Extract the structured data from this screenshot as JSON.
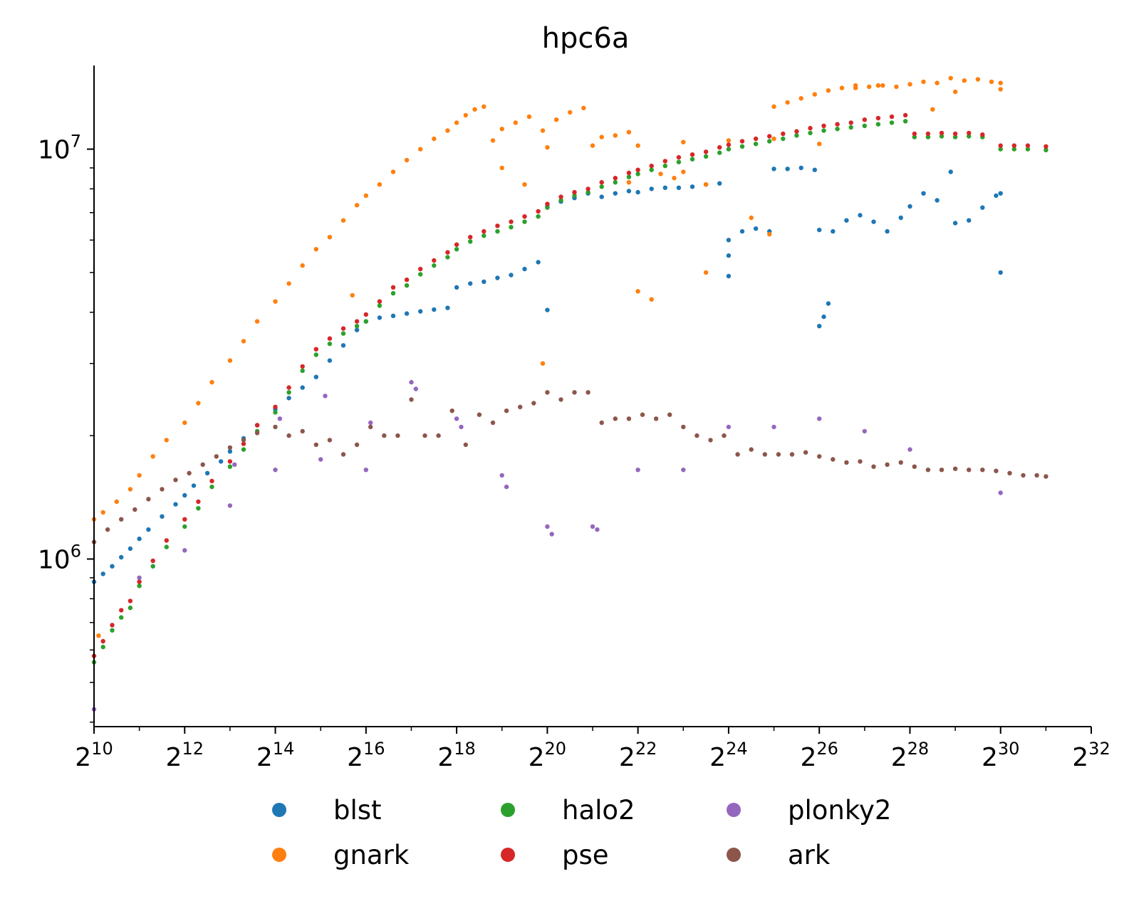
{
  "chart_data": {
    "type": "scatter",
    "title": "hpc6a",
    "xlabel": "",
    "ylabel": "",
    "x_scale": "log2",
    "y_scale": "log10",
    "x_ticks": [
      {
        "base": "2",
        "exp": "10",
        "value": 1024
      },
      {
        "base": "2",
        "exp": "12",
        "value": 4096
      },
      {
        "base": "2",
        "exp": "14",
        "value": 16384
      },
      {
        "base": "2",
        "exp": "16",
        "value": 65536
      },
      {
        "base": "2",
        "exp": "18",
        "value": 262144
      },
      {
        "base": "2",
        "exp": "20",
        "value": 1048576
      },
      {
        "base": "2",
        "exp": "22",
        "value": 4194304
      },
      {
        "base": "2",
        "exp": "24",
        "value": 16777216
      },
      {
        "base": "2",
        "exp": "26",
        "value": 67108864
      },
      {
        "base": "2",
        "exp": "28",
        "value": 268435456
      },
      {
        "base": "2",
        "exp": "30",
        "value": 1073741824
      },
      {
        "base": "2",
        "exp": "32",
        "value": 4294967296
      }
    ],
    "y_ticks": [
      {
        "base": "10",
        "exp": "6",
        "value": 1000000
      },
      {
        "base": "10",
        "exp": "7",
        "value": 10000000
      }
    ],
    "xlim": [
      1024,
      4294967296
    ],
    "ylim": [
      390000,
      16000000
    ],
    "grid": false,
    "legend": "bottom-outside",
    "series": [
      {
        "name": "blst",
        "color": "#1f77b4",
        "x_log2": [
          10,
          10.2,
          10.4,
          10.6,
          10.8,
          11,
          11.2,
          11.5,
          11.8,
          12,
          12.2,
          12.5,
          12.8,
          13,
          13.3,
          13.6,
          14,
          14.3,
          14.6,
          14.9,
          15.2,
          15.5,
          15.8,
          16,
          16.3,
          16.6,
          16.9,
          17.2,
          17.5,
          17.8,
          18,
          18.3,
          18.6,
          18.9,
          19.2,
          19.5,
          19.8,
          20,
          20.3,
          20.6,
          20.9,
          21.2,
          21.5,
          21.8,
          22,
          22.3,
          22.6,
          22.9,
          23.2,
          23.5,
          23.8,
          24,
          24.3,
          24.6,
          24.9,
          25,
          25.3,
          25.6,
          25.9,
          26,
          26.3,
          26.6,
          26.9,
          27.2,
          27.5,
          27.8,
          28,
          28.3,
          28.6,
          28.9,
          29,
          29.3,
          29.6,
          29.9,
          30,
          30,
          26,
          26.1,
          26.2,
          24,
          24,
          20
        ],
        "y": [
          880000,
          920000,
          960000,
          1010000,
          1060000,
          1120000,
          1180000,
          1270000,
          1360000,
          1430000,
          1510000,
          1620000,
          1730000,
          1830000,
          1970000,
          2120000,
          2320000,
          2470000,
          2620000,
          2780000,
          3050000,
          3320000,
          3620000,
          3800000,
          3880000,
          3920000,
          3970000,
          4020000,
          4060000,
          4100000,
          4600000,
          4700000,
          4750000,
          4850000,
          4930000,
          5100000,
          5300000,
          7250000,
          7450000,
          7600000,
          7800000,
          7650000,
          7800000,
          7900000,
          7850000,
          8000000,
          8050000,
          8050000,
          8100000,
          8200000,
          8250000,
          6000000,
          6300000,
          6400000,
          6300000,
          8950000,
          8950000,
          9000000,
          8900000,
          6350000,
          6300000,
          6700000,
          6900000,
          6650000,
          6300000,
          6800000,
          7250000,
          7800000,
          7500000,
          8800000,
          6600000,
          6700000,
          7200000,
          7700000,
          7800000,
          5000000,
          3700000,
          3900000,
          4200000,
          5500000,
          4900000,
          4050000
        ]
      },
      {
        "name": "gnark",
        "color": "#ff7f0e",
        "x_log2": [
          10,
          10.2,
          10.5,
          10.8,
          11,
          11.3,
          11.6,
          12,
          12.3,
          12.6,
          13,
          13.3,
          13.6,
          14,
          14.3,
          14.6,
          14.9,
          15.2,
          15.5,
          15.8,
          16,
          16.3,
          16.6,
          16.9,
          17.2,
          17.5,
          17.8,
          18,
          18.2,
          18.4,
          18.6,
          19,
          19.3,
          19.6,
          19.9,
          20.2,
          20.5,
          20.8,
          21.2,
          21.5,
          21.8,
          25,
          25.3,
          25.6,
          25.9,
          26.2,
          26.5,
          26.8,
          27.1,
          27.4,
          27.7,
          28,
          28.3,
          28.6,
          28.9,
          29.2,
          29.5,
          29.8,
          30,
          20,
          21,
          22,
          23,
          24,
          25,
          23.5,
          21.8,
          22.8,
          23,
          19,
          18.8,
          19.5,
          22,
          22.3,
          23.5,
          24.5,
          24.9,
          15.7,
          19.9,
          26,
          28.5,
          29,
          30,
          22.5,
          26.8,
          27.3,
          10.1
        ],
        "y": [
          1250000,
          1300000,
          1380000,
          1480000,
          1600000,
          1780000,
          1950000,
          2150000,
          2400000,
          2700000,
          3050000,
          3400000,
          3800000,
          4250000,
          4700000,
          5200000,
          5700000,
          6100000,
          6700000,
          7300000,
          7700000,
          8200000,
          8800000,
          9400000,
          10000000,
          10600000,
          11100000,
          11600000,
          12100000,
          12500000,
          12700000,
          11200000,
          11600000,
          12000000,
          11100000,
          11800000,
          12300000,
          12600000,
          10700000,
          10800000,
          11000000,
          12700000,
          13000000,
          13300000,
          13600000,
          13900000,
          14100000,
          14300000,
          14200000,
          14300000,
          14200000,
          14400000,
          14600000,
          14500000,
          14900000,
          14700000,
          14800000,
          14600000,
          14500000,
          10100000,
          10200000,
          10200000,
          10400000,
          10500000,
          10600000,
          8200000,
          8300000,
          8500000,
          8800000,
          9000000,
          10500000,
          8200000,
          4500000,
          4300000,
          5000000,
          6800000,
          6200000,
          4400000,
          3000000,
          10300000,
          12500000,
          13800000,
          14000000,
          8700000,
          14100000,
          14300000,
          650000
        ]
      },
      {
        "name": "halo2",
        "color": "#2ca02c",
        "x_log2": [
          10,
          10.2,
          10.4,
          10.6,
          10.8,
          11,
          11.3,
          11.6,
          12,
          12.3,
          12.6,
          13,
          13.3,
          13.6,
          14,
          14.3,
          14.6,
          14.9,
          15.2,
          15.5,
          15.8,
          16,
          16.3,
          16.6,
          16.9,
          17.2,
          17.5,
          17.8,
          18,
          18.3,
          18.6,
          18.9,
          19.2,
          19.5,
          19.8,
          20,
          20.3,
          20.6,
          20.9,
          21.2,
          21.5,
          21.8,
          22,
          22.3,
          22.6,
          22.9,
          23.2,
          23.5,
          23.8,
          24,
          24.3,
          24.6,
          24.9,
          25.2,
          25.5,
          25.8,
          26.1,
          26.4,
          26.7,
          27,
          27.3,
          27.6,
          27.9,
          28.1,
          28.4,
          28.7,
          29,
          29.3,
          29.6,
          30,
          30.3,
          30.6,
          31
        ],
        "y": [
          560000,
          610000,
          670000,
          720000,
          760000,
          860000,
          960000,
          1070000,
          1200000,
          1330000,
          1500000,
          1680000,
          1850000,
          2050000,
          2280000,
          2550000,
          2880000,
          3150000,
          3350000,
          3550000,
          3700000,
          3800000,
          4150000,
          4450000,
          4650000,
          4950000,
          5200000,
          5450000,
          5700000,
          5950000,
          6150000,
          6300000,
          6450000,
          6650000,
          6850000,
          7200000,
          7500000,
          7700000,
          7850000,
          8100000,
          8300000,
          8550000,
          8700000,
          8900000,
          9100000,
          9300000,
          9450000,
          9600000,
          9800000,
          10000000,
          10150000,
          10300000,
          10450000,
          10600000,
          10800000,
          10950000,
          11100000,
          11200000,
          11300000,
          11400000,
          11500000,
          11600000,
          11700000,
          10700000,
          10700000,
          10750000,
          10700000,
          10750000,
          10700000,
          10000000,
          10000000,
          10000000,
          9950000
        ]
      },
      {
        "name": "pse",
        "color": "#d62728",
        "x_log2": [
          10,
          10.2,
          10.4,
          10.6,
          10.8,
          11,
          11.3,
          11.6,
          12,
          12.3,
          12.6,
          13,
          13.3,
          13.6,
          14,
          14.3,
          14.6,
          14.9,
          15.2,
          15.5,
          15.8,
          16,
          16.3,
          16.6,
          16.9,
          17.2,
          17.5,
          17.8,
          18,
          18.3,
          18.6,
          18.9,
          19.2,
          19.5,
          19.8,
          20,
          20.3,
          20.6,
          20.9,
          21.2,
          21.5,
          21.8,
          22,
          22.3,
          22.6,
          22.9,
          23.2,
          23.5,
          23.8,
          24,
          24.3,
          24.6,
          24.9,
          25.2,
          25.5,
          25.8,
          26.1,
          26.4,
          26.7,
          27,
          27.3,
          27.6,
          27.9,
          28.1,
          28.4,
          28.7,
          29,
          29.3,
          29.6,
          30,
          30.3,
          30.6,
          31
        ],
        "y": [
          580000,
          630000,
          690000,
          750000,
          790000,
          880000,
          990000,
          1110000,
          1250000,
          1380000,
          1550000,
          1730000,
          1910000,
          2120000,
          2350000,
          2620000,
          2950000,
          3250000,
          3450000,
          3650000,
          3800000,
          3950000,
          4250000,
          4600000,
          4800000,
          5100000,
          5350000,
          5600000,
          5850000,
          6100000,
          6300000,
          6500000,
          6650000,
          6850000,
          7050000,
          7350000,
          7650000,
          7850000,
          8000000,
          8300000,
          8500000,
          8750000,
          8900000,
          9100000,
          9350000,
          9550000,
          9700000,
          9850000,
          10100000,
          10250000,
          10450000,
          10600000,
          10750000,
          10900000,
          11050000,
          11250000,
          11400000,
          11500000,
          11600000,
          11800000,
          11900000,
          12000000,
          12100000,
          10900000,
          10900000,
          10950000,
          10900000,
          10950000,
          10850000,
          10200000,
          10200000,
          10200000,
          10150000
        ]
      },
      {
        "name": "plonky2",
        "color": "#9467bd",
        "x_log2": [
          10,
          11,
          12,
          13,
          14,
          15,
          16,
          17,
          18,
          19,
          20,
          21,
          22,
          23,
          24,
          25,
          26,
          27,
          28,
          30,
          13.1,
          14.1,
          15.1,
          16.1,
          17.1,
          18.1,
          19.1,
          20.1,
          21.1
        ],
        "y": [
          430000,
          900000,
          1050000,
          1350000,
          1650000,
          1750000,
          1650000,
          2700000,
          2200000,
          1600000,
          1200000,
          1200000,
          1650000,
          1650000,
          2100000,
          2100000,
          2200000,
          2050000,
          1850000,
          1450000,
          1700000,
          2200000,
          2500000,
          2150000,
          2600000,
          2100000,
          1500000,
          1150000,
          1180000
        ]
      },
      {
        "name": "ark",
        "color": "#8c564b",
        "x_log2": [
          10,
          10.3,
          10.6,
          10.9,
          11.2,
          11.5,
          11.8,
          12.1,
          12.4,
          12.7,
          13,
          13.3,
          13.6,
          14,
          14.3,
          14.6,
          14.9,
          15.2,
          15.5,
          15.8,
          16.1,
          16.4,
          16.7,
          17,
          17.3,
          17.6,
          17.9,
          18.2,
          18.5,
          18.8,
          19.1,
          19.4,
          19.7,
          20,
          20.3,
          20.6,
          20.9,
          21.2,
          21.5,
          21.8,
          22.1,
          22.4,
          22.7,
          23,
          23.3,
          23.6,
          23.9,
          24.2,
          24.5,
          24.8,
          25.1,
          25.4,
          25.7,
          26,
          26.3,
          26.6,
          26.9,
          27.2,
          27.5,
          27.8,
          28.1,
          28.4,
          28.7,
          29,
          29.3,
          29.6,
          29.9,
          30.2,
          30.5,
          30.8,
          31
        ],
        "y": [
          1100000,
          1180000,
          1250000,
          1320000,
          1400000,
          1480000,
          1560000,
          1620000,
          1700000,
          1780000,
          1870000,
          1950000,
          2030000,
          2100000,
          2000000,
          2050000,
          1900000,
          1950000,
          1800000,
          1900000,
          2100000,
          2000000,
          2000000,
          2450000,
          2000000,
          2000000,
          2300000,
          1900000,
          2250000,
          2150000,
          2300000,
          2350000,
          2400000,
          2550000,
          2450000,
          2550000,
          2550000,
          2150000,
          2200000,
          2200000,
          2250000,
          2200000,
          2250000,
          2100000,
          2000000,
          1950000,
          2000000,
          1800000,
          1850000,
          1800000,
          1800000,
          1800000,
          1820000,
          1780000,
          1750000,
          1720000,
          1730000,
          1680000,
          1700000,
          1720000,
          1680000,
          1650000,
          1650000,
          1660000,
          1650000,
          1650000,
          1640000,
          1620000,
          1600000,
          1600000,
          1590000
        ]
      }
    ]
  }
}
